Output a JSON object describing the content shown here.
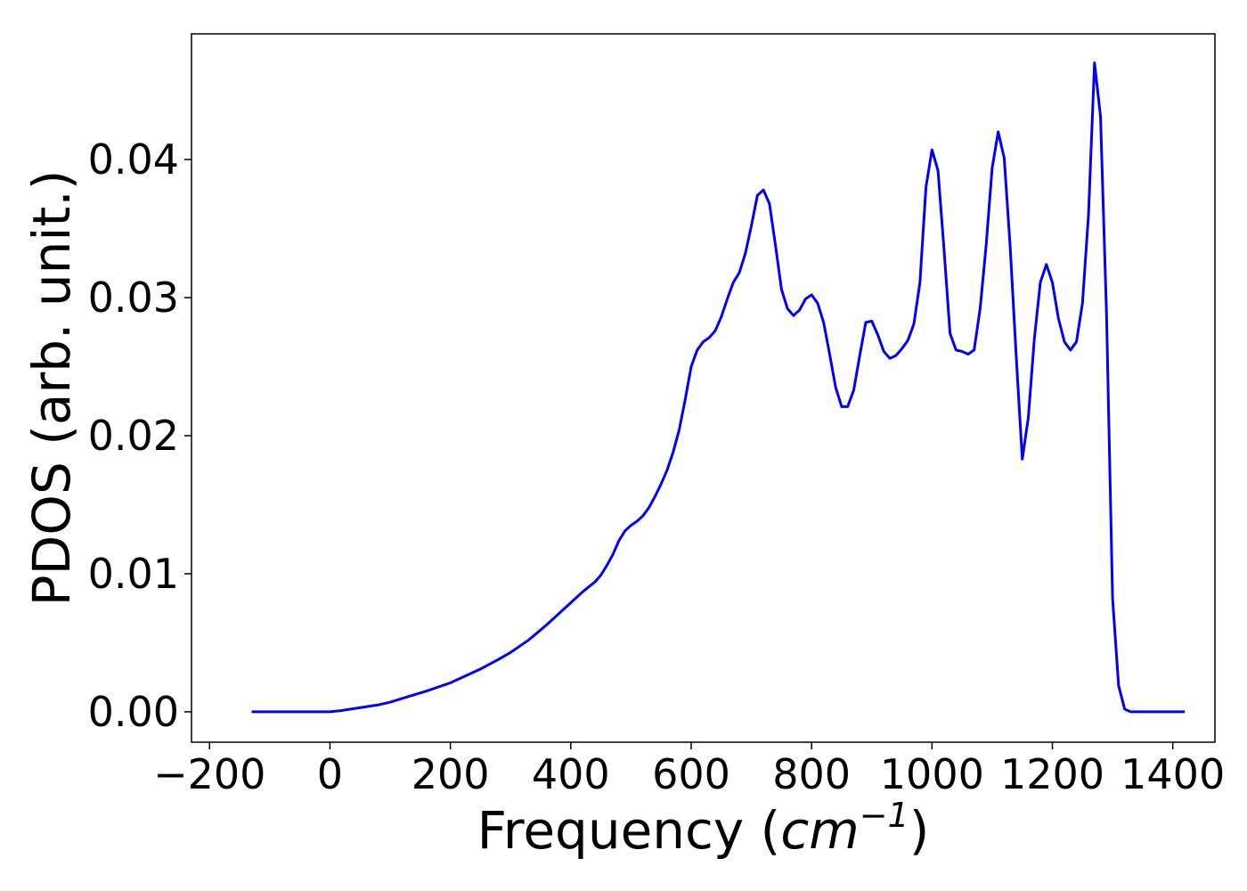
{
  "chart_data": {
    "type": "line",
    "title": "",
    "xlabel_main": "Frequency (",
    "xlabel_unit": "cm",
    "xlabel_exp": "−1",
    "xlabel_close": ")",
    "ylabel": "PDOS (arb. unit.)",
    "xlim": [
      -230,
      1470
    ],
    "ylim": [
      -0.0022,
      0.0491
    ],
    "xticks": [
      -200,
      0,
      200,
      400,
      600,
      800,
      1000,
      1200,
      1400
    ],
    "xtick_labels": [
      "−200",
      "0",
      "200",
      "400",
      "600",
      "800",
      "1000",
      "1200",
      "1400"
    ],
    "yticks": [
      0.0,
      0.01,
      0.02,
      0.03,
      0.04
    ],
    "ytick_labels": [
      "0.00",
      "0.01",
      "0.02",
      "0.03",
      "0.04"
    ],
    "grid": false,
    "series": [
      {
        "color": "#0000ff",
        "x": [
          -130,
          -100,
          -50,
          0,
          20,
          50,
          80,
          100,
          130,
          160,
          200,
          250,
          280,
          300,
          330,
          360,
          400,
          420,
          440,
          450,
          460,
          470,
          480,
          490,
          500,
          510,
          520,
          530,
          540,
          550,
          560,
          570,
          580,
          590,
          600,
          610,
          620,
          630,
          640,
          650,
          660,
          670,
          680,
          690,
          700,
          710,
          720,
          730,
          740,
          750,
          760,
          770,
          780,
          790,
          800,
          810,
          820,
          830,
          840,
          850,
          860,
          870,
          880,
          890,
          900,
          910,
          920,
          930,
          940,
          950,
          960,
          970,
          980,
          990,
          1000,
          1010,
          1020,
          1030,
          1040,
          1050,
          1060,
          1070,
          1080,
          1090,
          1100,
          1110,
          1120,
          1130,
          1140,
          1150,
          1160,
          1170,
          1180,
          1190,
          1200,
          1210,
          1220,
          1230,
          1240,
          1250,
          1260,
          1270,
          1280,
          1290,
          1300,
          1310,
          1320,
          1330,
          1340,
          1360,
          1400,
          1420
        ],
        "y": [
          0.0,
          0.0,
          0.0,
          0.0,
          0.0001,
          0.0003,
          0.0005,
          0.0007,
          0.0011,
          0.0015,
          0.0021,
          0.0031,
          0.0038,
          0.0043,
          0.0052,
          0.0063,
          0.0079,
          0.0087,
          0.0094,
          0.0099,
          0.0106,
          0.0114,
          0.0124,
          0.0131,
          0.0135,
          0.0138,
          0.0142,
          0.0148,
          0.0156,
          0.0165,
          0.0175,
          0.0188,
          0.0204,
          0.0226,
          0.025,
          0.0262,
          0.0268,
          0.0271,
          0.0276,
          0.0286,
          0.0299,
          0.0311,
          0.0318,
          0.0332,
          0.0352,
          0.0374,
          0.0378,
          0.0368,
          0.0338,
          0.0306,
          0.0292,
          0.0287,
          0.0291,
          0.0299,
          0.0302,
          0.0296,
          0.0282,
          0.0259,
          0.0235,
          0.0221,
          0.0221,
          0.0233,
          0.0258,
          0.0282,
          0.0283,
          0.0273,
          0.0261,
          0.0256,
          0.0258,
          0.0263,
          0.0269,
          0.0281,
          0.0311,
          0.038,
          0.0407,
          0.0392,
          0.0335,
          0.0274,
          0.0262,
          0.0261,
          0.0259,
          0.0262,
          0.0292,
          0.0338,
          0.0394,
          0.042,
          0.0401,
          0.0336,
          0.0257,
          0.0183,
          0.0213,
          0.027,
          0.0311,
          0.0324,
          0.0311,
          0.0285,
          0.0268,
          0.0262,
          0.0268,
          0.0296,
          0.036,
          0.047,
          0.0431,
          0.0287,
          0.0082,
          0.0019,
          0.0002,
          0.0,
          0.0,
          0.0,
          0.0,
          0.0
        ]
      }
    ]
  }
}
